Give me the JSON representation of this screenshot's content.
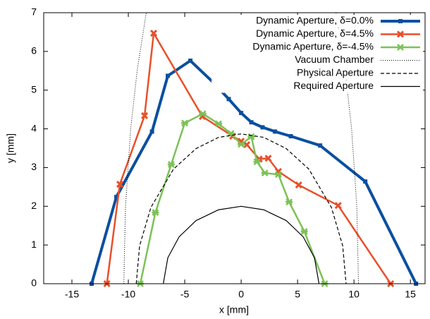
{
  "chart_data": {
    "type": "line",
    "xlabel": "x [mm]",
    "ylabel": "y [mm]",
    "xlim": [
      -17.5,
      16.3
    ],
    "ylim": [
      0,
      7
    ],
    "xticks": [
      -15,
      -10,
      -5,
      0,
      5,
      10,
      15
    ],
    "yticks": [
      0,
      1,
      2,
      3,
      4,
      5,
      6,
      7
    ],
    "legend": "top-right",
    "series": [
      {
        "name": "Dynamic Aperture, δ=0.0%",
        "color": "#0a4fa0",
        "width": 4,
        "dash": "solid",
        "marker": "square",
        "x": [
          -13.25,
          -11.06,
          -7.9,
          -6.5,
          -4.5,
          -2.44,
          -1.1,
          0,
          0.9,
          1.9,
          3,
          4.4,
          7,
          11,
          15.5
        ],
        "values": [
          0,
          2.24,
          3.93,
          5.37,
          5.76,
          5.19,
          4.77,
          4.41,
          4.17,
          4.04,
          3.93,
          3.81,
          3.57,
          2.64,
          0
        ]
      },
      {
        "name": "Dynamic Aperture, δ=4.5%",
        "color": "#e8502a",
        "width": 2.5,
        "dash": "solid",
        "marker": "cross",
        "x": [
          -11.9,
          -10.75,
          -8.56,
          -7.75,
          -3.44,
          -0.75,
          0,
          0.5,
          1.6,
          2.4,
          3.3,
          5.1,
          8.6,
          13.25
        ],
        "values": [
          0,
          2.57,
          4.34,
          6.47,
          4.32,
          3.81,
          3.68,
          3.59,
          3.22,
          3.24,
          2.9,
          2.55,
          2.02,
          0
        ]
      },
      {
        "name": "Dynamic Aperture, δ=-4.5%",
        "color": "#7cc256",
        "width": 2.5,
        "dash": "solid",
        "marker": "star",
        "x": [
          -8.94,
          -7.6,
          -6.2,
          -5,
          -3.4,
          -2,
          -0.9,
          0,
          0.9,
          1.4,
          2.1,
          3.3,
          4.25,
          5.6,
          7.4
        ],
        "values": [
          0,
          1.84,
          3.08,
          4.15,
          4.39,
          4.13,
          3.88,
          3.6,
          3.8,
          3.15,
          2.86,
          2.82,
          2.11,
          1.35,
          0
        ]
      },
      {
        "name": "Vacuum Chamber",
        "color": "#000000",
        "width": 1,
        "dash": "dotted",
        "marker": "none",
        "x": [
          -10.4,
          -10.25,
          -9.79,
          -9.22,
          -8.41,
          null,
          8.41,
          9.22,
          9.79,
          10.25,
          10.4
        ],
        "values": [
          0,
          2,
          4,
          5.5,
          7,
          null,
          7,
          5.5,
          4,
          2,
          0
        ]
      },
      {
        "name": "Physical Aperture",
        "color": "#000000",
        "width": 1.2,
        "dash": "dashed",
        "marker": "none",
        "x": [
          -9.3,
          -9,
          -8,
          -6,
          -4,
          -2,
          0,
          2,
          4,
          6,
          8,
          9,
          9.3
        ],
        "values": [
          0,
          0.98,
          1.97,
          2.96,
          3.49,
          3.78,
          3.87,
          3.78,
          3.49,
          2.96,
          1.97,
          0.98,
          0
        ]
      },
      {
        "name": "Required Aperture",
        "color": "#000000",
        "width": 1.2,
        "dash": "solid",
        "marker": "none",
        "x": [
          -6.9,
          -6.5,
          -5.5,
          -4,
          -2,
          0,
          2,
          4,
          5.5,
          6.5,
          6.9
        ],
        "values": [
          0,
          0.67,
          1.21,
          1.63,
          1.91,
          2,
          1.91,
          1.63,
          1.21,
          0.67,
          0
        ]
      }
    ]
  }
}
